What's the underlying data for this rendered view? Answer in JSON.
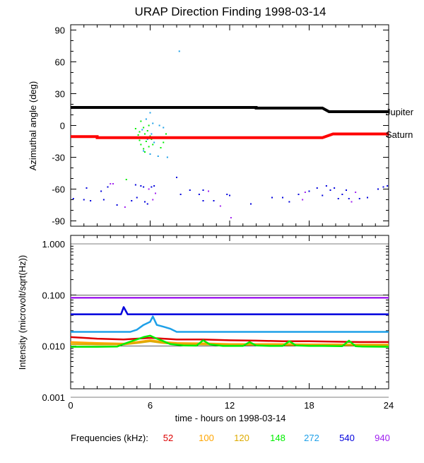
{
  "chart_data": [
    {
      "type": "scatter",
      "title": "URAP Direction Finding  1998-03-14",
      "xlabel": "",
      "ylabel": "Azimuthal angle (deg)",
      "xlim": [
        0,
        24
      ],
      "ylim": [
        -95,
        95
      ],
      "x_ticks": [
        0,
        6,
        12,
        18,
        24
      ],
      "y_ticks": [
        90,
        60,
        30,
        0,
        -30,
        -60,
        -90
      ],
      "reference_lines": [
        {
          "name": "Jupiter",
          "color": "#000000",
          "points": [
            [
              0,
              17
            ],
            [
              14,
              17
            ],
            [
              14,
              16.4
            ],
            [
              19,
              16.4
            ],
            [
              19.5,
              13
            ],
            [
              24,
              13
            ]
          ]
        },
        {
          "name": "Saturn",
          "color": "#ff0000",
          "points": [
            [
              0,
              -10.5
            ],
            [
              2,
              -10.5
            ],
            [
              2,
              -11.5
            ],
            [
              19,
              -11.5
            ],
            [
              19.8,
              -8
            ],
            [
              24,
              -8
            ]
          ]
        }
      ],
      "points": [
        {
          "x": 0.2,
          "y": -69,
          "c": "#0000dd"
        },
        {
          "x": 1.0,
          "y": -70,
          "c": "#0000dd"
        },
        {
          "x": 1.2,
          "y": -59,
          "c": "#0000dd"
        },
        {
          "x": 1.5,
          "y": -71,
          "c": "#0000dd"
        },
        {
          "x": 2.3,
          "y": -62,
          "c": "#0000dd"
        },
        {
          "x": 2.5,
          "y": -70,
          "c": "#0000dd"
        },
        {
          "x": 2.8,
          "y": -58,
          "c": "#0000dd"
        },
        {
          "x": 3.0,
          "y": -55,
          "c": "#a020f0"
        },
        {
          "x": 3.2,
          "y": -55,
          "c": "#a020f0"
        },
        {
          "x": 3.5,
          "y": -75,
          "c": "#0000dd"
        },
        {
          "x": 4.1,
          "y": -77,
          "c": "#a020f0"
        },
        {
          "x": 4.2,
          "y": -51,
          "c": "#00ee00"
        },
        {
          "x": 4.6,
          "y": -71,
          "c": "#0000dd"
        },
        {
          "x": 4.9,
          "y": -56,
          "c": "#0000dd"
        },
        {
          "x": 5.0,
          "y": -68,
          "c": "#0000dd"
        },
        {
          "x": 5.3,
          "y": -57,
          "c": "#0000dd"
        },
        {
          "x": 5.5,
          "y": -58,
          "c": "#0000dd"
        },
        {
          "x": 5.6,
          "y": -72,
          "c": "#0000dd"
        },
        {
          "x": 5.8,
          "y": -74,
          "c": "#0000dd"
        },
        {
          "x": 5.9,
          "y": -60,
          "c": "#a020f0"
        },
        {
          "x": 6.1,
          "y": -58,
          "c": "#0000dd"
        },
        {
          "x": 6.3,
          "y": -57,
          "c": "#0000dd"
        },
        {
          "x": 6.4,
          "y": -64,
          "c": "#a020f0"
        },
        {
          "x": 6.2,
          "y": -70,
          "c": "#a020f0"
        },
        {
          "x": 8.0,
          "y": -49,
          "c": "#0000dd"
        },
        {
          "x": 8.3,
          "y": -65,
          "c": "#0000dd"
        },
        {
          "x": 9.0,
          "y": -61,
          "c": "#0000dd"
        },
        {
          "x": 9.7,
          "y": -65,
          "c": "#0000dd"
        },
        {
          "x": 10.0,
          "y": -61,
          "c": "#0000dd"
        },
        {
          "x": 10.0,
          "y": -71,
          "c": "#0000dd"
        },
        {
          "x": 10.4,
          "y": -62,
          "c": "#a020f0"
        },
        {
          "x": 10.8,
          "y": -71,
          "c": "#0000dd"
        },
        {
          "x": 11.3,
          "y": -76,
          "c": "#a020f0"
        },
        {
          "x": 11.8,
          "y": -65,
          "c": "#0000dd"
        },
        {
          "x": 12.0,
          "y": -66,
          "c": "#0000dd"
        },
        {
          "x": 12.1,
          "y": -87,
          "c": "#a020f0"
        },
        {
          "x": 13.6,
          "y": -74,
          "c": "#0000dd"
        },
        {
          "x": 15.2,
          "y": -68,
          "c": "#0000dd"
        },
        {
          "x": 16.0,
          "y": -68,
          "c": "#0000dd"
        },
        {
          "x": 16.5,
          "y": -72,
          "c": "#0000dd"
        },
        {
          "x": 17.2,
          "y": -65,
          "c": "#0000dd"
        },
        {
          "x": 17.5,
          "y": -70,
          "c": "#a020f0"
        },
        {
          "x": 17.7,
          "y": -63,
          "c": "#a020f0"
        },
        {
          "x": 18.0,
          "y": -62,
          "c": "#0000dd"
        },
        {
          "x": 18.6,
          "y": -59,
          "c": "#0000dd"
        },
        {
          "x": 19.0,
          "y": -66,
          "c": "#0000dd"
        },
        {
          "x": 19.3,
          "y": -57,
          "c": "#0000dd"
        },
        {
          "x": 19.6,
          "y": -61,
          "c": "#0000dd"
        },
        {
          "x": 19.9,
          "y": -59,
          "c": "#0000dd"
        },
        {
          "x": 20.2,
          "y": -69,
          "c": "#0000dd"
        },
        {
          "x": 20.5,
          "y": -65,
          "c": "#0000dd"
        },
        {
          "x": 20.8,
          "y": -61,
          "c": "#0000dd"
        },
        {
          "x": 21.0,
          "y": -69,
          "c": "#0000dd"
        },
        {
          "x": 21.2,
          "y": -72,
          "c": "#a020f0"
        },
        {
          "x": 21.5,
          "y": -63,
          "c": "#a020f0"
        },
        {
          "x": 21.8,
          "y": -69,
          "c": "#0000dd"
        },
        {
          "x": 22.4,
          "y": -68,
          "c": "#0000dd"
        },
        {
          "x": 23.2,
          "y": -60,
          "c": "#0000dd"
        },
        {
          "x": 23.6,
          "y": -58,
          "c": "#0000dd"
        },
        {
          "x": 23.9,
          "y": -57,
          "c": "#0000dd"
        },
        {
          "x": 5.3,
          "y": 4,
          "c": "#00ee00"
        },
        {
          "x": 5.5,
          "y": -2,
          "c": "#00ee00"
        },
        {
          "x": 5.2,
          "y": -6,
          "c": "#00ee00"
        },
        {
          "x": 5.6,
          "y": -8,
          "c": "#00ee00"
        },
        {
          "x": 5.4,
          "y": -12,
          "c": "#00ee00"
        },
        {
          "x": 5.7,
          "y": -15,
          "c": "#00ee00"
        },
        {
          "x": 5.3,
          "y": -18,
          "c": "#00ee00"
        },
        {
          "x": 5.9,
          "y": -20,
          "c": "#00ee00"
        },
        {
          "x": 5.5,
          "y": -22,
          "c": "#00ee00"
        },
        {
          "x": 6.0,
          "y": -10,
          "c": "#00ee00"
        },
        {
          "x": 5.1,
          "y": -9,
          "c": "#00ee00"
        },
        {
          "x": 5.8,
          "y": -5,
          "c": "#00ee00"
        },
        {
          "x": 6.1,
          "y": -13,
          "c": "#00ee00"
        },
        {
          "x": 5.6,
          "y": -25,
          "c": "#00ee00"
        },
        {
          "x": 5.2,
          "y": -14,
          "c": "#00ee00"
        },
        {
          "x": 5.9,
          "y": 0,
          "c": "#00ee00"
        },
        {
          "x": 6.2,
          "y": -18,
          "c": "#00ee00"
        },
        {
          "x": 4.9,
          "y": -3,
          "c": "#00ee00"
        },
        {
          "x": 7.2,
          "y": -8,
          "c": "#00ee00"
        },
        {
          "x": 7.0,
          "y": -16,
          "c": "#00ee00"
        },
        {
          "x": 6.8,
          "y": -21,
          "c": "#00ee00"
        },
        {
          "x": 6.0,
          "y": 12,
          "c": "#1ea0e8"
        },
        {
          "x": 5.7,
          "y": 6,
          "c": "#1ea0e8"
        },
        {
          "x": 6.2,
          "y": 2,
          "c": "#1ea0e8"
        },
        {
          "x": 5.4,
          "y": -4,
          "c": "#1ea0e8"
        },
        {
          "x": 6.1,
          "y": -8,
          "c": "#1ea0e8"
        },
        {
          "x": 5.8,
          "y": -13,
          "c": "#1ea0e8"
        },
        {
          "x": 6.3,
          "y": -16,
          "c": "#1ea0e8"
        },
        {
          "x": 5.5,
          "y": -24,
          "c": "#1ea0e8"
        },
        {
          "x": 6.0,
          "y": -27,
          "c": "#1ea0e8"
        },
        {
          "x": 7.0,
          "y": -2,
          "c": "#1ea0e8"
        },
        {
          "x": 6.6,
          "y": -29,
          "c": "#1ea0e8"
        },
        {
          "x": 8.2,
          "y": 70,
          "c": "#1ea0e8"
        },
        {
          "x": 6.7,
          "y": 0,
          "c": "#1ea0e8"
        },
        {
          "x": 7.3,
          "y": -30,
          "c": "#1ea0e8"
        }
      ]
    },
    {
      "type": "line",
      "xlabel": "time - hours on 1998-03-14",
      "ylabel": "Intensity (microvolt/sqrt(Hz))",
      "xlim": [
        0,
        24
      ],
      "ylim": [
        0.001,
        1.0
      ],
      "yscale": "log",
      "x_ticks": [
        0,
        6,
        12,
        18,
        24
      ],
      "x_tick_labels": [
        "0",
        "6",
        "12",
        "18",
        "24"
      ],
      "y_ticks": [
        1.0,
        0.1,
        0.01,
        0.001
      ],
      "y_tick_labels": [
        "1.000",
        "0.100",
        "0.010",
        "0.001"
      ],
      "series": [
        {
          "name": "940",
          "color": "#a020f0",
          "x": [
            0,
            24
          ],
          "y": [
            0.088,
            0.088
          ]
        },
        {
          "name": "540",
          "color": "#0000dd",
          "x": [
            0,
            3.8,
            4.0,
            4.3,
            24
          ],
          "y": [
            0.042,
            0.042,
            0.058,
            0.042,
            0.042
          ]
        },
        {
          "name": "272",
          "color": "#1ea0e8",
          "x": [
            0,
            4.5,
            5.0,
            5.5,
            6.0,
            6.2,
            6.5,
            7.0,
            7.5,
            8.0,
            24
          ],
          "y": [
            0.019,
            0.019,
            0.021,
            0.026,
            0.03,
            0.038,
            0.026,
            0.024,
            0.022,
            0.019,
            0.019
          ]
        },
        {
          "name": "52",
          "color": "#dd0000",
          "x": [
            0,
            2,
            4,
            5,
            6,
            7,
            8,
            10,
            12,
            14,
            16,
            18,
            20,
            22,
            24
          ],
          "y": [
            0.015,
            0.014,
            0.0135,
            0.014,
            0.0145,
            0.014,
            0.0135,
            0.0135,
            0.013,
            0.0128,
            0.0125,
            0.0125,
            0.0122,
            0.012,
            0.012
          ]
        },
        {
          "name": "100",
          "color": "#ffa500",
          "x": [
            0,
            2,
            4,
            5,
            6,
            7,
            8,
            10,
            12,
            14,
            16,
            18,
            20,
            22,
            24
          ],
          "y": [
            0.012,
            0.0115,
            0.0112,
            0.012,
            0.013,
            0.012,
            0.0115,
            0.0113,
            0.011,
            0.011,
            0.011,
            0.0108,
            0.0108,
            0.0107,
            0.0107
          ]
        },
        {
          "name": "120",
          "color": "#ddaa00",
          "x": [
            0,
            2,
            4,
            5,
            6,
            7,
            8,
            10,
            12,
            14,
            16,
            18,
            20,
            22,
            24
          ],
          "y": [
            0.011,
            0.0108,
            0.0108,
            0.0115,
            0.0125,
            0.0115,
            0.011,
            0.0108,
            0.0106,
            0.0106,
            0.0105,
            0.0104,
            0.0104,
            0.0104,
            0.0104
          ]
        },
        {
          "name": "148",
          "color": "#00ee00",
          "x": [
            0,
            2,
            3.5,
            4.2,
            4.6,
            5.0,
            5.5,
            6.0,
            6.5,
            7.0,
            7.5,
            8.5,
            9.5,
            10.0,
            10.5,
            11.5,
            13,
            13.5,
            14,
            15,
            16,
            16.5,
            17,
            18,
            19,
            20.5,
            21,
            21.5,
            22,
            24
          ],
          "y": [
            0.0097,
            0.0097,
            0.0098,
            0.0115,
            0.0125,
            0.0135,
            0.015,
            0.016,
            0.014,
            0.0125,
            0.011,
            0.0103,
            0.0102,
            0.013,
            0.0108,
            0.0101,
            0.0101,
            0.012,
            0.0103,
            0.0101,
            0.0101,
            0.0125,
            0.0103,
            0.0101,
            0.0101,
            0.01,
            0.0128,
            0.01,
            0.0098,
            0.0097
          ]
        }
      ]
    }
  ],
  "planets": {
    "jupiter": "Jupiter",
    "saturn": "Saturn"
  },
  "legend": {
    "label": "Frequencies (kHz):",
    "items": [
      {
        "value": "52",
        "color": "#dd0000"
      },
      {
        "value": "100",
        "color": "#ffa500"
      },
      {
        "value": "120",
        "color": "#ddaa00"
      },
      {
        "value": "148",
        "color": "#00ee00"
      },
      {
        "value": "272",
        "color": "#1ea0e8"
      },
      {
        "value": "540",
        "color": "#0000dd"
      },
      {
        "value": "940",
        "color": "#a020f0"
      }
    ]
  }
}
